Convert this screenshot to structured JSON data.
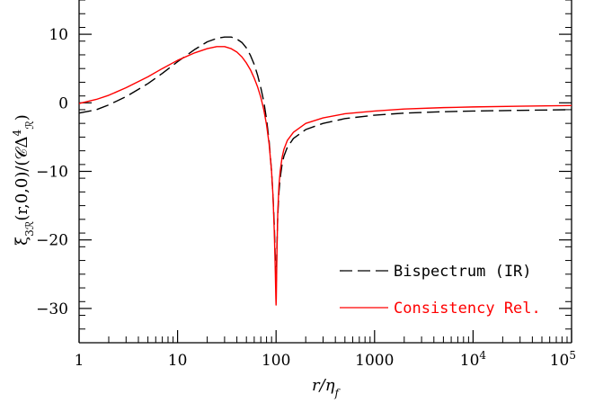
{
  "chart_data": {
    "type": "line",
    "xscale": "log",
    "xlim": [
      1,
      100000
    ],
    "ylim": [
      -35,
      15
    ],
    "xlabel": "r/η_f",
    "ylabel": "ξ_3ℛ(r,0,0)/(𝒞Δ_ℛ^4)",
    "x_ticks": [
      {
        "value": 1,
        "label": "1"
      },
      {
        "value": 10,
        "label": "10"
      },
      {
        "value": 100,
        "label": "100"
      },
      {
        "value": 1000,
        "label": "1000"
      },
      {
        "value": 10000,
        "label": "10^4"
      },
      {
        "value": 100000,
        "label": "10^5"
      }
    ],
    "y_ticks": [
      {
        "value": 10,
        "label": "10"
      },
      {
        "value": 0,
        "label": "0"
      },
      {
        "value": -10,
        "label": "−10"
      },
      {
        "value": -20,
        "label": "−20"
      },
      {
        "value": -30,
        "label": "−30"
      }
    ],
    "legend_position": "bottom-right",
    "grid": false,
    "series": [
      {
        "name": "Bispectrum (IR)",
        "color": "#000000",
        "style": "dashed",
        "x": [
          1,
          1.5,
          2,
          3,
          5,
          7,
          10,
          15,
          20,
          25,
          30,
          35,
          40,
          45,
          50,
          55,
          60,
          65,
          70,
          75,
          80,
          85,
          90,
          93,
          96,
          98,
          99,
          99.5,
          100,
          100.5,
          101,
          102,
          104,
          107,
          110,
          115,
          120,
          130,
          150,
          200,
          300,
          500,
          1000,
          2000,
          5000,
          10000,
          30000,
          100000
        ],
        "y": [
          -1.5,
          -1.0,
          -0.3,
          0.9,
          2.8,
          4.3,
          6.0,
          7.8,
          8.9,
          9.4,
          9.6,
          9.6,
          9.3,
          8.8,
          8.0,
          6.9,
          5.6,
          4.0,
          2.2,
          0.2,
          -2.4,
          -5.6,
          -10.0,
          -13.5,
          -18.0,
          -22.5,
          -24.8,
          -25.8,
          -26.5,
          -25.8,
          -24.5,
          -21.0,
          -16.5,
          -13.0,
          -11.0,
          -9.0,
          -7.8,
          -6.5,
          -5.2,
          -3.9,
          -3.0,
          -2.3,
          -1.8,
          -1.5,
          -1.3,
          -1.2,
          -1.1,
          -1.0
        ]
      },
      {
        "name": "Consistency Rel.",
        "color": "#ff0000",
        "style": "solid",
        "x": [
          1,
          1.5,
          2,
          3,
          5,
          7,
          10,
          15,
          20,
          25,
          30,
          35,
          40,
          45,
          50,
          55,
          60,
          65,
          70,
          75,
          80,
          85,
          90,
          93,
          96,
          98,
          99,
          99.5,
          100,
          100.5,
          101,
          102,
          104,
          107,
          110,
          115,
          120,
          130,
          150,
          200,
          300,
          500,
          1000,
          2000,
          5000,
          10000,
          30000,
          100000
        ],
        "y": [
          -0.1,
          0.5,
          1.1,
          2.2,
          3.8,
          5.0,
          6.2,
          7.3,
          7.9,
          8.2,
          8.2,
          7.9,
          7.4,
          6.7,
          5.8,
          4.8,
          3.6,
          2.3,
          0.8,
          -1.0,
          -3.2,
          -6.0,
          -10.0,
          -13.5,
          -19.0,
          -24.0,
          -27.0,
          -28.5,
          -29.5,
          -28.5,
          -26.5,
          -22.0,
          -16.0,
          -12.0,
          -10.0,
          -8.0,
          -6.8,
          -5.5,
          -4.3,
          -3.0,
          -2.2,
          -1.6,
          -1.2,
          -0.9,
          -0.7,
          -0.6,
          -0.5,
          -0.4
        ]
      }
    ]
  }
}
